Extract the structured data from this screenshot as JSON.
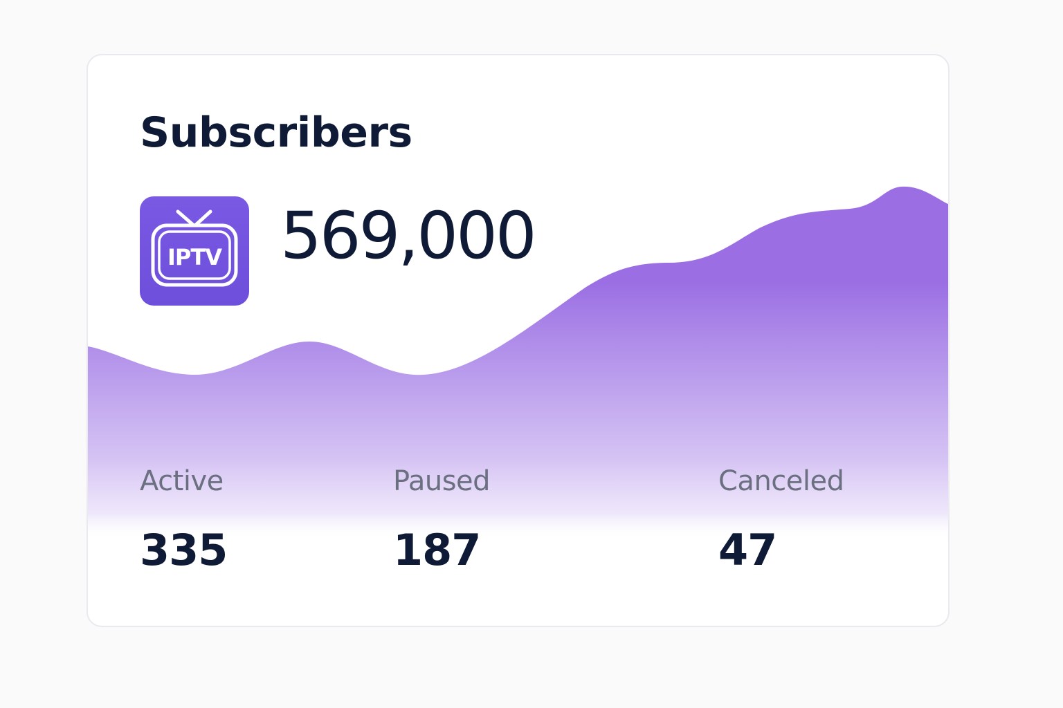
{
  "card": {
    "title": "Subscribers",
    "total": "569,000",
    "app_icon": {
      "name": "tv-icon",
      "label": "IPTV",
      "color": "#7153de"
    },
    "accent_color": "#9b6fe3",
    "trend_chart": {
      "type": "area",
      "title": "",
      "xlabel": "",
      "ylabel": "",
      "description_values": [
        0.42,
        0.36,
        0.44,
        0.37,
        0.58,
        0.76,
        0.93,
        1.0
      ]
    },
    "stats": [
      {
        "label": "Active",
        "value": "335"
      },
      {
        "label": "Paused",
        "value": "187"
      },
      {
        "label": "Canceled",
        "value": "47"
      }
    ]
  }
}
